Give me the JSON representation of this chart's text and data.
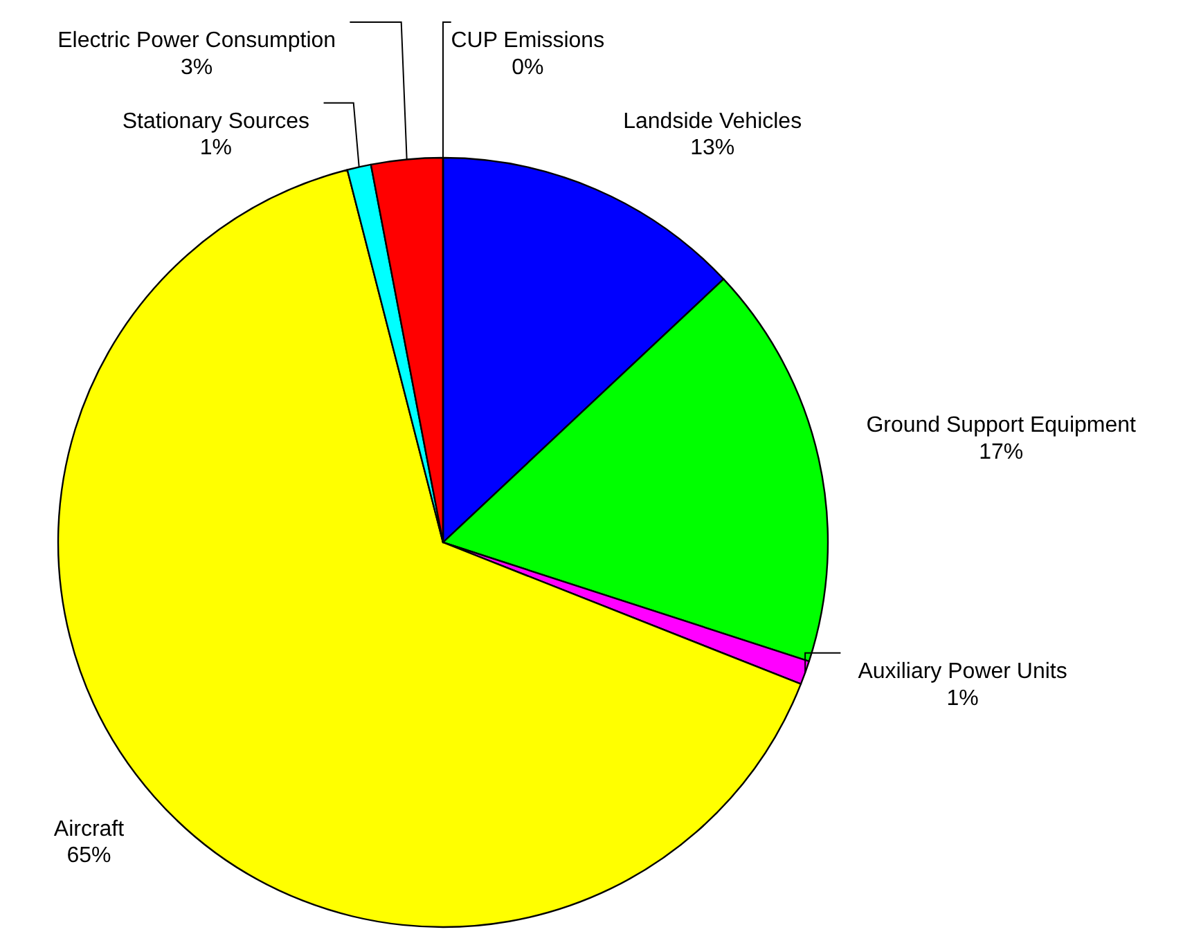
{
  "chart_data": {
    "type": "pie",
    "categories": [
      "Landside Vehicles",
      "Ground Support Equipment",
      "Auxiliary Power Units",
      "Aircraft",
      "Stationary Sources",
      "Electric Power Consumption",
      "CUP Emissions"
    ],
    "values": [
      13,
      17,
      1,
      65,
      1,
      3,
      0
    ],
    "colors": [
      "#0000ff",
      "#00ff00",
      "#ff00ff",
      "#ffff00",
      "#00ffff",
      "#ff0000",
      "#808080"
    ],
    "value_labels": [
      "13%",
      "17%",
      "1%",
      "65%",
      "1%",
      "3%",
      "0%"
    ]
  }
}
